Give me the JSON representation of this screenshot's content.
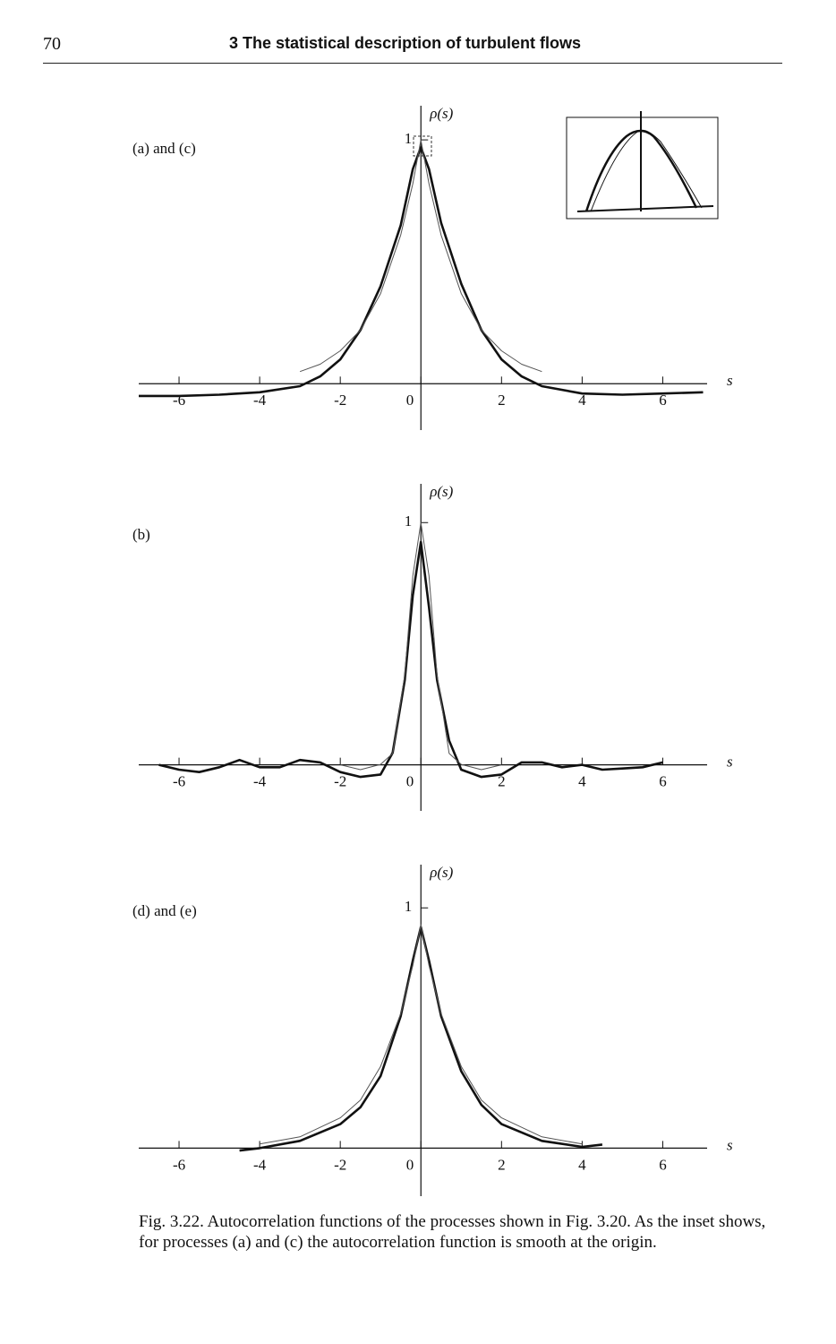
{
  "header": {
    "page_number": "70",
    "title": "3 The statistical description of turbulent flows"
  },
  "chart_data": [
    {
      "type": "line",
      "label": "(a) and (c)",
      "ylabel": "ρ(s)",
      "xlabel": "s",
      "xlim": [
        -7,
        7.1
      ],
      "ylim": [
        -0.19,
        1.14
      ],
      "xticks": [
        -6,
        -4,
        -2,
        0,
        2,
        4,
        6
      ],
      "yticks": [
        1
      ],
      "series": [
        {
          "color": "#111111",
          "x": [
            -7,
            -6,
            -5,
            -4,
            -3,
            -2.5,
            -2,
            -1.5,
            -1,
            -0.5,
            -0.2,
            0,
            0.2,
            0.5,
            1,
            1.5,
            2,
            2.5,
            3,
            4,
            5,
            6,
            7
          ],
          "values": [
            -0.05,
            -0.05,
            -0.045,
            -0.035,
            -0.01,
            0.03,
            0.1,
            0.22,
            0.4,
            0.65,
            0.88,
            0.97,
            0.88,
            0.66,
            0.41,
            0.22,
            0.1,
            0.03,
            -0.01,
            -0.04,
            -0.045,
            -0.04,
            -0.035
          ]
        },
        {
          "color": "#555555",
          "x": [
            -3,
            -2.5,
            -2,
            -1.5,
            -1,
            -0.5,
            -0.2,
            0,
            0.2,
            0.5,
            1,
            1.5,
            2,
            2.5,
            3
          ],
          "values": [
            0.05,
            0.08,
            0.135,
            0.22,
            0.37,
            0.61,
            0.82,
            1,
            0.82,
            0.61,
            0.37,
            0.22,
            0.135,
            0.08,
            0.05
          ]
        }
      ]
    },
    {
      "type": "line",
      "label": "(b)",
      "ylabel": "ρ(s)",
      "xlabel": "s",
      "xlim": [
        -7,
        7.1
      ],
      "ylim": [
        -0.19,
        1.16
      ],
      "xticks": [
        -6,
        -4,
        -2,
        0,
        2,
        4,
        6
      ],
      "yticks": [
        1
      ],
      "series": [
        {
          "color": "#111111",
          "x": [
            -6.5,
            -6,
            -5.5,
            -5,
            -4.5,
            -4,
            -3.5,
            -3,
            -2.5,
            -2,
            -1.5,
            -1,
            -0.7,
            -0.4,
            -0.2,
            0,
            0.2,
            0.4,
            0.7,
            1,
            1.5,
            2,
            2.5,
            3,
            3.5,
            4,
            4.5,
            5,
            5.5,
            6
          ],
          "values": [
            0,
            -0.02,
            -0.03,
            -0.01,
            0.02,
            -0.01,
            -0.01,
            0.02,
            0.01,
            -0.03,
            -0.05,
            -0.04,
            0.05,
            0.35,
            0.7,
            0.92,
            0.65,
            0.35,
            0.1,
            -0.02,
            -0.05,
            -0.04,
            0.01,
            0.01,
            -0.01,
            0,
            -0.02,
            -0.015,
            -0.01,
            0.01
          ]
        },
        {
          "color": "#555555",
          "x": [
            -2,
            -1.5,
            -1,
            -0.7,
            -0.4,
            -0.2,
            0,
            0.2,
            0.4,
            0.7,
            1,
            1.5,
            2
          ],
          "values": [
            0,
            -0.02,
            0.002,
            0.047,
            0.37,
            0.78,
            1,
            0.78,
            0.37,
            0.047,
            0.002,
            -0.02,
            0
          ]
        }
      ]
    },
    {
      "type": "line",
      "label": "(d) and (e)",
      "ylabel": "ρ(s)",
      "xlabel": "s",
      "xlim": [
        -7,
        7.1
      ],
      "ylim": [
        -0.2,
        1.18
      ],
      "xticks": [
        -6,
        -4,
        -2,
        0,
        2,
        4,
        6
      ],
      "yticks": [
        1
      ],
      "series": [
        {
          "color": "#111111",
          "x": [
            -4.5,
            -4,
            -3,
            -2,
            -1.5,
            -1,
            -0.5,
            -0.2,
            0,
            0.2,
            0.5,
            1,
            1.5,
            2,
            3,
            4,
            4.5
          ],
          "values": [
            -0.01,
            0,
            0.03,
            0.1,
            0.17,
            0.3,
            0.55,
            0.78,
            0.92,
            0.78,
            0.55,
            0.32,
            0.18,
            0.1,
            0.03,
            0.005,
            0.015
          ]
        },
        {
          "color": "#555555",
          "x": [
            -4,
            -3,
            -2,
            -1.5,
            -1,
            -0.5,
            -0.2,
            0,
            0.2,
            0.5,
            1,
            1.5,
            2,
            3,
            4
          ],
          "values": [
            0.017,
            0.047,
            0.126,
            0.2,
            0.34,
            0.56,
            0.76,
            0.93,
            0.76,
            0.56,
            0.34,
            0.2,
            0.126,
            0.047,
            0.017
          ]
        }
      ]
    }
  ],
  "caption": "Fig. 3.22. Autocorrelation functions of the processes shown in Fig. 3.20. As the inset shows, for processes (a) and (c) the autocorrelation function is smooth at the origin."
}
